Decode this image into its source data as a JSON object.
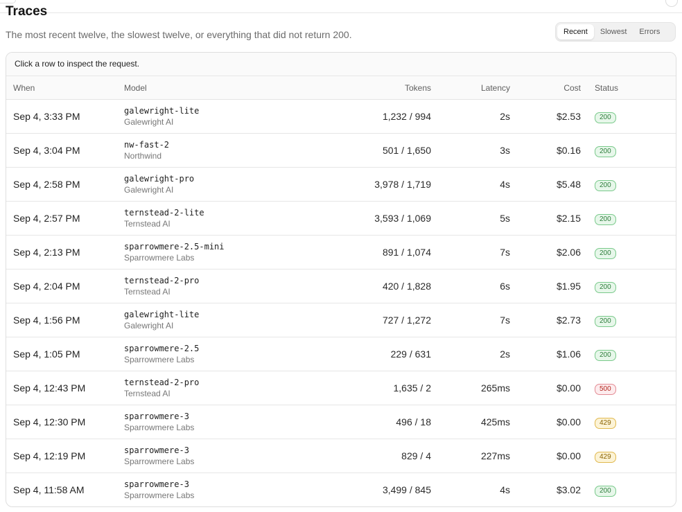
{
  "header": {
    "title": "Traces",
    "subtitle": "The most recent twelve, the slowest twelve, or everything that did not return 200."
  },
  "filters": {
    "options": [
      "Recent",
      "Slowest",
      "Errors"
    ],
    "selected": "Recent"
  },
  "table": {
    "hint": "Click a row to inspect the request.",
    "columns": {
      "when": "When",
      "model": "Model",
      "tokens": "Tokens",
      "latency": "Latency",
      "cost": "Cost",
      "status": "Status"
    },
    "rows": [
      {
        "when": "Sep 4, 3:33 PM",
        "model": "galewright-lite",
        "provider": "Galewright AI",
        "tokens": "1,232 / 994",
        "latency": "2s",
        "cost": "$2.53",
        "status": "200"
      },
      {
        "when": "Sep 4, 3:04 PM",
        "model": "nw-fast-2",
        "provider": "Northwind",
        "tokens": "501 / 1,650",
        "latency": "3s",
        "cost": "$0.16",
        "status": "200"
      },
      {
        "when": "Sep 4, 2:58 PM",
        "model": "galewright-pro",
        "provider": "Galewright AI",
        "tokens": "3,978 / 1,719",
        "latency": "4s",
        "cost": "$5.48",
        "status": "200"
      },
      {
        "when": "Sep 4, 2:57 PM",
        "model": "ternstead-2-lite",
        "provider": "Ternstead AI",
        "tokens": "3,593 / 1,069",
        "latency": "5s",
        "cost": "$2.15",
        "status": "200"
      },
      {
        "when": "Sep 4, 2:13 PM",
        "model": "sparrowmere-2.5-mini",
        "provider": "Sparrowmere Labs",
        "tokens": "891 / 1,074",
        "latency": "7s",
        "cost": "$2.06",
        "status": "200"
      },
      {
        "when": "Sep 4, 2:04 PM",
        "model": "ternstead-2-pro",
        "provider": "Ternstead AI",
        "tokens": "420 / 1,828",
        "latency": "6s",
        "cost": "$1.95",
        "status": "200"
      },
      {
        "when": "Sep 4, 1:56 PM",
        "model": "galewright-lite",
        "provider": "Galewright AI",
        "tokens": "727 / 1,272",
        "latency": "7s",
        "cost": "$2.73",
        "status": "200"
      },
      {
        "when": "Sep 4, 1:05 PM",
        "model": "sparrowmere-2.5",
        "provider": "Sparrowmere Labs",
        "tokens": "229 / 631",
        "latency": "2s",
        "cost": "$1.06",
        "status": "200"
      },
      {
        "when": "Sep 4, 12:43 PM",
        "model": "ternstead-2-pro",
        "provider": "Ternstead AI",
        "tokens": "1,635 / 2",
        "latency": "265ms",
        "cost": "$0.00",
        "status": "500"
      },
      {
        "when": "Sep 4, 12:30 PM",
        "model": "sparrowmere-3",
        "provider": "Sparrowmere Labs",
        "tokens": "496 / 18",
        "latency": "425ms",
        "cost": "$0.00",
        "status": "429"
      },
      {
        "when": "Sep 4, 12:19 PM",
        "model": "sparrowmere-3",
        "provider": "Sparrowmere Labs",
        "tokens": "829 / 4",
        "latency": "227ms",
        "cost": "$0.00",
        "status": "429"
      },
      {
        "when": "Sep 4, 11:58 AM",
        "model": "sparrowmere-3",
        "provider": "Sparrowmere Labs",
        "tokens": "3,499 / 845",
        "latency": "4s",
        "cost": "$3.02",
        "status": "200"
      }
    ]
  },
  "status_colors": {
    "200": "#2e7d3b",
    "429": "#8a6200",
    "500": "#b3261e"
  }
}
